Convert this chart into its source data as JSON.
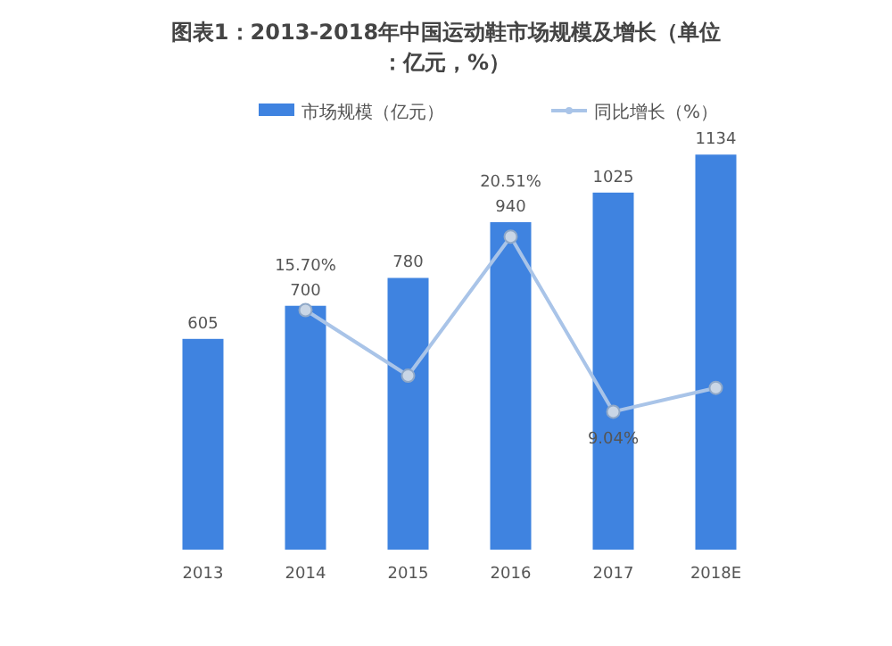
{
  "chart_data": {
    "type": "bar",
    "title": "图表1：2013-2018年中国运动鞋市场规模及增长（单位：亿元，%）",
    "categories": [
      "2013",
      "2014",
      "2015",
      "2016",
      "2017",
      "2018E"
    ],
    "series": [
      {
        "name": "市场规模（亿元）",
        "color": "#3f83e0",
        "values": [
          605,
          700,
          780,
          940,
          1025,
          1134
        ],
        "value_labels": [
          "605",
          "700",
          "780",
          "940",
          "1025",
          "1134"
        ]
      },
      {
        "name": "同比增长（%）",
        "type": "line",
        "axis": "y2",
        "color": "#a9c4e8",
        "marker": "circle",
        "values": [
          null,
          15.7,
          11.4,
          20.51,
          9.04,
          10.6
        ],
        "value_labels": [
          null,
          "15.70%",
          null,
          "20.51%",
          "9.04%",
          null
        ]
      }
    ],
    "relative": false,
    "legend": "top",
    "grid": false
  }
}
